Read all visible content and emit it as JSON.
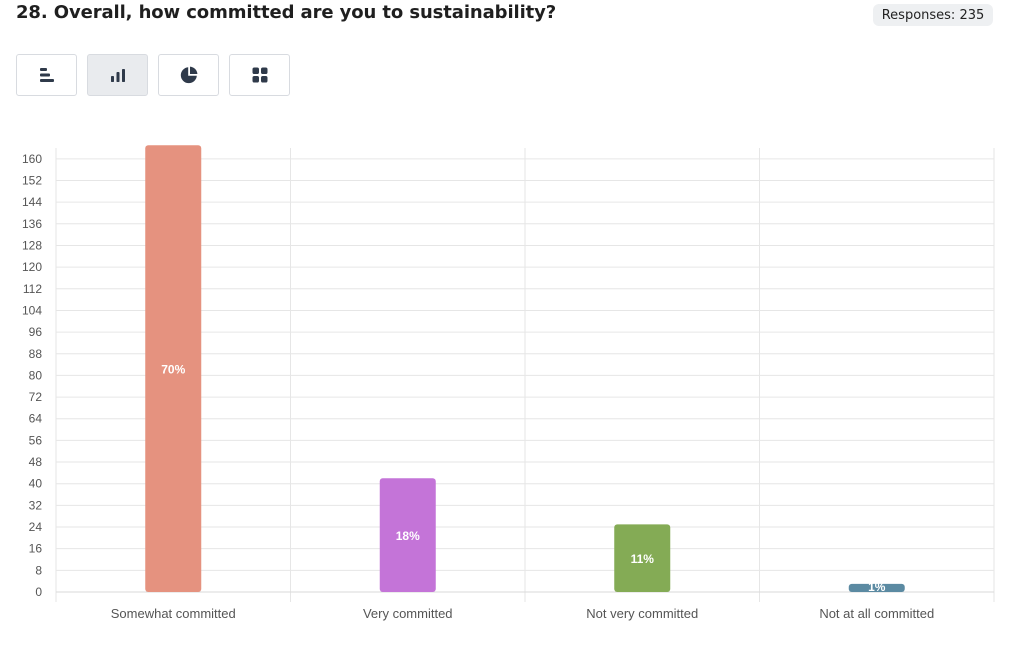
{
  "question": {
    "title": "28. Overall, how committed are you to sustainability?"
  },
  "responses_badge": "Responses: 235",
  "toolbar": {
    "buttons": [
      {
        "name": "horizontal-bar-chart-icon",
        "active": false
      },
      {
        "name": "vertical-bar-chart-icon",
        "active": true
      },
      {
        "name": "pie-chart-icon",
        "active": false
      },
      {
        "name": "grid-view-icon",
        "active": false
      }
    ]
  },
  "colors": {
    "icon": "#2f3a4a",
    "grid": "#e6e6e6"
  },
  "chart_data": {
    "type": "bar",
    "categories": [
      "Somewhat committed",
      "Very committed",
      "Not very committed",
      "Not at all committed"
    ],
    "values": [
      165,
      42,
      25,
      3
    ],
    "data_labels": [
      "70%",
      "18%",
      "11%",
      "1%"
    ],
    "colors": [
      "#e5927f",
      "#c474d8",
      "#84ab55",
      "#5b8aa2"
    ],
    "ylim": [
      0,
      164
    ],
    "yticks": [
      0,
      8,
      16,
      24,
      32,
      40,
      48,
      56,
      64,
      72,
      80,
      88,
      96,
      104,
      112,
      120,
      128,
      136,
      144,
      152,
      160
    ],
    "grid": true,
    "legend": "none"
  }
}
